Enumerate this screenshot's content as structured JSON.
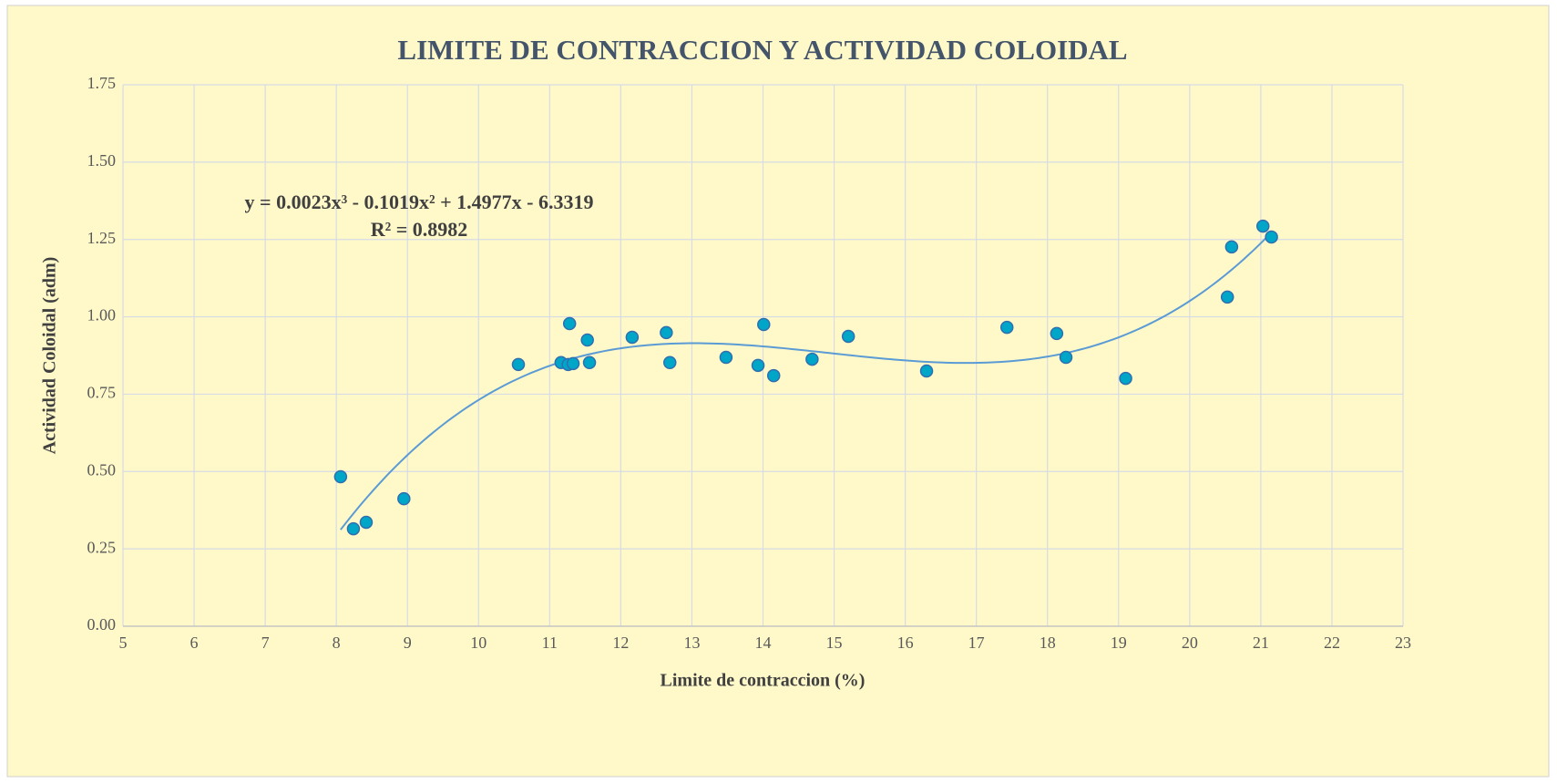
{
  "chart_data": {
    "type": "scatter",
    "title": "LIMITE DE CONTRACCION Y ACTIVIDAD COLOIDAL",
    "x_label": "Limite de contraccion (%)",
    "y_label": "Actividad Coloidal (adm)",
    "xlim": [
      5,
      23
    ],
    "ylim": [
      0,
      1.75
    ],
    "xticks": [
      5,
      6,
      7,
      8,
      9,
      10,
      11,
      12,
      13,
      14,
      15,
      16,
      17,
      18,
      19,
      20,
      21,
      22,
      23
    ],
    "yticks": [
      {
        "value": 0,
        "label": "0.00"
      },
      {
        "value": 0.25,
        "label": "0.25"
      },
      {
        "value": 0.5,
        "label": "0.50"
      },
      {
        "value": 0.75,
        "label": "0.75"
      },
      {
        "value": 1,
        "label": "1.00"
      },
      {
        "value": 1.25,
        "label": "1.25"
      },
      {
        "value": 1.5,
        "label": "1.50"
      },
      {
        "value": 1.75,
        "label": "1.75"
      }
    ],
    "grid": true,
    "series": [
      {
        "color": "#00a6c8",
        "x": [
          8.06,
          8.24,
          8.42,
          8.95,
          10.56,
          11.16,
          11.28,
          11.26,
          11.33,
          11.53,
          11.56,
          12.16,
          12.64,
          12.69,
          13.48,
          13.93,
          14.01,
          14.15,
          14.69,
          15.2,
          16.3,
          17.43,
          18.13,
          18.26,
          19.1,
          20.53,
          20.59,
          21.03,
          21.15
        ],
        "values": [
          0.483,
          0.315,
          0.336,
          0.412,
          0.846,
          0.852,
          0.978,
          0.846,
          0.849,
          0.925,
          0.852,
          0.934,
          0.949,
          0.852,
          0.869,
          0.843,
          0.975,
          0.81,
          0.863,
          0.937,
          0.825,
          0.966,
          0.946,
          0.869,
          0.801,
          1.064,
          1.226,
          1.293,
          1.258
        ]
      }
    ],
    "trendline": {
      "type": "poly3",
      "color": "#5b9bd5",
      "equation": "y = 0.0023x³ - 0.1019x² + 1.4977x - 6.3319",
      "r2": "R² = 0.8982"
    }
  }
}
